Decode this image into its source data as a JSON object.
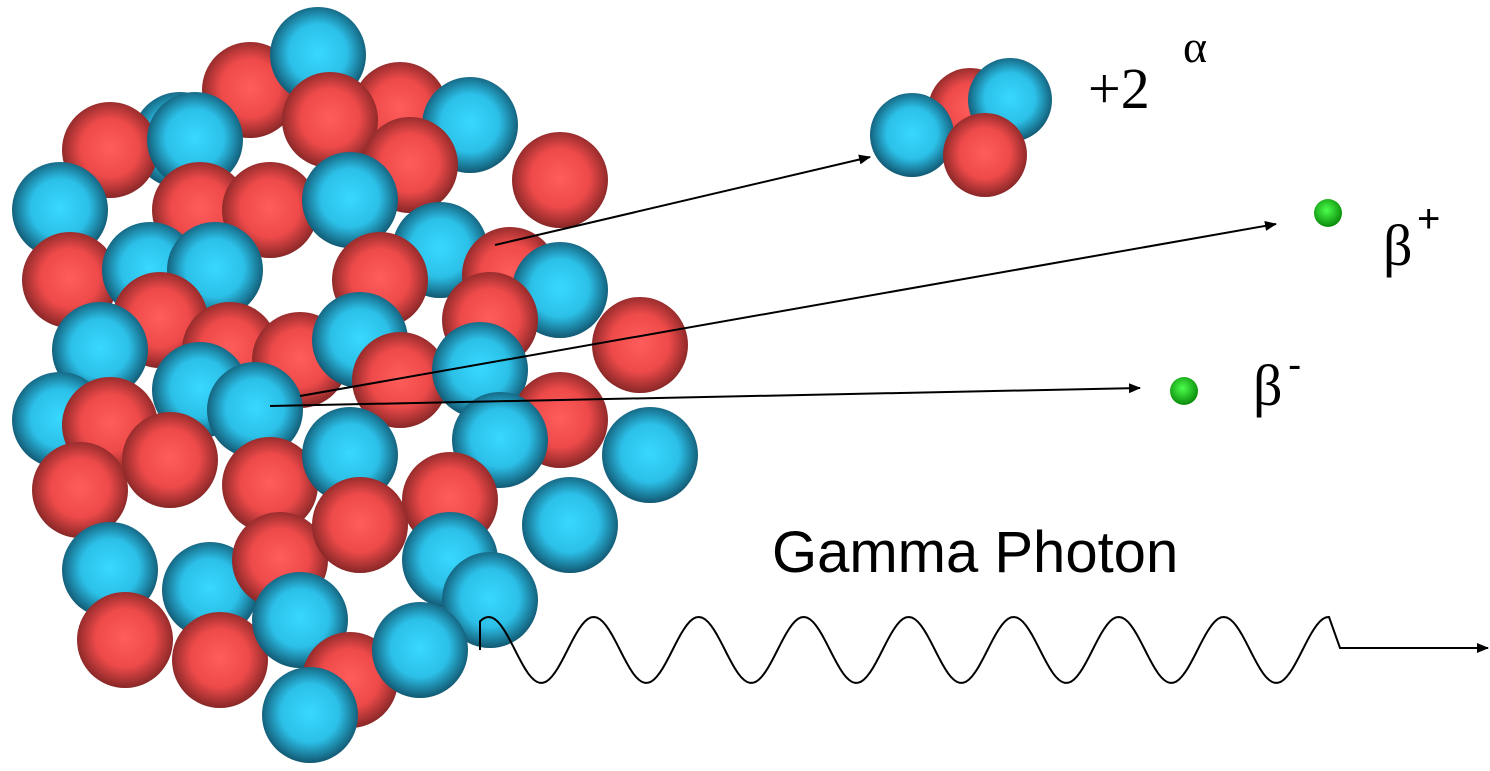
{
  "alpha": {
    "charge": "+2",
    "symbol": "α"
  },
  "beta_plus": {
    "symbol": "β",
    "sign": "+"
  },
  "beta_minus": {
    "symbol": "β",
    "sign": "-"
  },
  "gamma": {
    "label": "Gamma Photon"
  }
}
